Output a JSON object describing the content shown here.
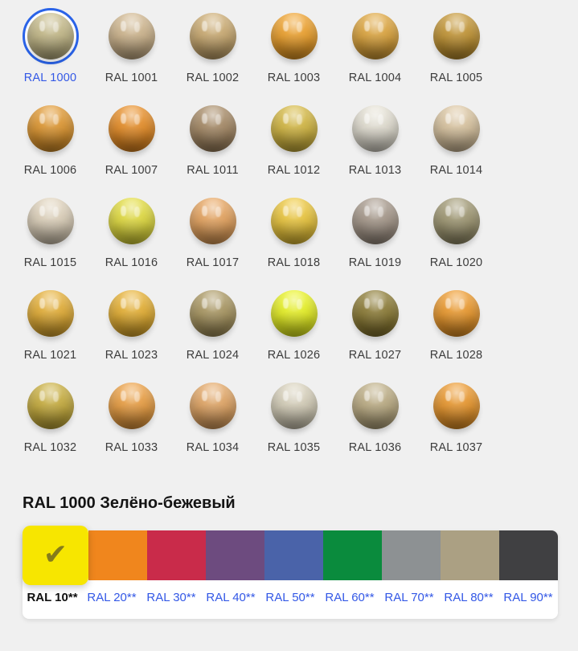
{
  "theme": {
    "page_bg": "#f0f0f0",
    "selected_ring_blue": "#2a63e8",
    "link_blue": "#3358e6",
    "label_gray": "#3c3c3c",
    "check_color": "#857c1b"
  },
  "palette_grid": {
    "selected_code": "RAL 1000",
    "items": [
      {
        "code": "RAL 1000",
        "color": "#C8BD8B",
        "selected": true
      },
      {
        "code": "RAL 1001",
        "color": "#D2B88F",
        "selected": false
      },
      {
        "code": "RAL 1002",
        "color": "#CEAD72",
        "selected": false
      },
      {
        "code": "RAL 1003",
        "color": "#F2A32A",
        "selected": false
      },
      {
        "code": "RAL 1004",
        "color": "#E1A73C",
        "selected": false
      },
      {
        "code": "RAL 1005",
        "color": "#C69733",
        "selected": false
      },
      {
        "code": "RAL 1006",
        "color": "#E3992F",
        "selected": false
      },
      {
        "code": "RAL 1007",
        "color": "#EB8F25",
        "selected": false
      },
      {
        "code": "RAL 1011",
        "color": "#A88B66",
        "selected": false
      },
      {
        "code": "RAL 1012",
        "color": "#D7BA41",
        "selected": false
      },
      {
        "code": "RAL 1013",
        "color": "#E7E3D6",
        "selected": false
      },
      {
        "code": "RAL 1014",
        "color": "#DEC8A3",
        "selected": false
      },
      {
        "code": "RAL 1015",
        "color": "#E2D5BE",
        "selected": false
      },
      {
        "code": "RAL 1016",
        "color": "#E5DF3E",
        "selected": false
      },
      {
        "code": "RAL 1017",
        "color": "#EAA65F",
        "selected": false
      },
      {
        "code": "RAL 1018",
        "color": "#F0CA3C",
        "selected": false
      },
      {
        "code": "RAL 1019",
        "color": "#A89A8C",
        "selected": false
      },
      {
        "code": "RAL 1020",
        "color": "#A19973",
        "selected": false
      },
      {
        "code": "RAL 1021",
        "color": "#E8B135",
        "selected": false
      },
      {
        "code": "RAL 1023",
        "color": "#EAB332",
        "selected": false
      },
      {
        "code": "RAL 1024",
        "color": "#AC9962",
        "selected": false
      },
      {
        "code": "RAL 1026",
        "color": "#ECF622",
        "selected": false
      },
      {
        "code": "RAL 1027",
        "color": "#8D7C34",
        "selected": false
      },
      {
        "code": "RAL 1028",
        "color": "#F19C2C",
        "selected": false
      },
      {
        "code": "RAL 1032",
        "color": "#CBB03D",
        "selected": false
      },
      {
        "code": "RAL 1033",
        "color": "#EFA142",
        "selected": false
      },
      {
        "code": "RAL 1034",
        "color": "#E6A865",
        "selected": false
      },
      {
        "code": "RAL 1035",
        "color": "#DAD3BD",
        "selected": false
      },
      {
        "code": "RAL 1036",
        "color": "#BFAF85",
        "selected": false
      },
      {
        "code": "RAL 1037",
        "color": "#EF9A2C",
        "selected": false
      }
    ]
  },
  "detail": {
    "title": "RAL 1000 Зелёно-бежевый"
  },
  "groups": {
    "active_label": "RAL 10**",
    "check_icon": "✔",
    "items": [
      {
        "label": "RAL 10**",
        "color": "#F7E600",
        "active": true
      },
      {
        "label": "RAL 20**",
        "color": "#F0861D",
        "active": false
      },
      {
        "label": "RAL 30**",
        "color": "#C92B4A",
        "active": false
      },
      {
        "label": "RAL 40**",
        "color": "#6D4B7F",
        "active": false
      },
      {
        "label": "RAL 50**",
        "color": "#4A63A9",
        "active": false
      },
      {
        "label": "RAL 60**",
        "color": "#0A8B3D",
        "active": false
      },
      {
        "label": "RAL 70**",
        "color": "#8D9193",
        "active": false
      },
      {
        "label": "RAL 80**",
        "color": "#ABA083",
        "active": false
      },
      {
        "label": "RAL 90**",
        "color": "#404042",
        "active": false
      }
    ]
  }
}
